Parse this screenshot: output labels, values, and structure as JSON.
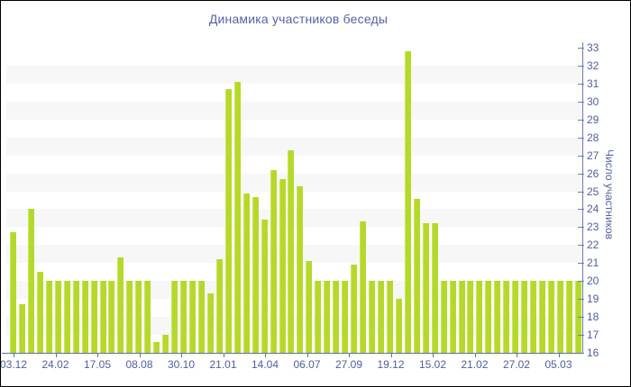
{
  "title": "Динамика участников беседы",
  "chart_data": {
    "type": "bar",
    "title": "Динамика участников беседы",
    "xlabel": "",
    "ylabel": "Число участников",
    "ylim": [
      16,
      33
    ],
    "y_ticks": [
      16,
      17,
      18,
      19,
      20,
      21,
      22,
      23,
      24,
      25,
      26,
      27,
      28,
      29,
      30,
      31,
      32,
      33
    ],
    "y_axis_side": "right",
    "grid": "alternating horizontal bands on odd-even value pairs",
    "legend": "none",
    "x_tick_labels": [
      "03.12",
      "24.02",
      "17.05",
      "08.08",
      "30.10",
      "21.01",
      "14.04",
      "06.07",
      "27.09",
      "19.12",
      "15.02",
      "21.02",
      "27.02",
      "05.03"
    ],
    "values": [
      22.7,
      18.7,
      24,
      20.5,
      20,
      20,
      20,
      20,
      20,
      20,
      20,
      20,
      21.3,
      20,
      20,
      20,
      16.6,
      17,
      20,
      20,
      20,
      20,
      19.3,
      21.2,
      30.7,
      31.1,
      24.9,
      24.7,
      23.4,
      26.2,
      25.7,
      27.3,
      25.3,
      21.1,
      20,
      20,
      20,
      20,
      20.9,
      23.3,
      20,
      20,
      20,
      19,
      32.8,
      24.6,
      23.2,
      23.2,
      20,
      20,
      20,
      20,
      20,
      20,
      20,
      20,
      20,
      20,
      20,
      20,
      20,
      20,
      20,
      20
    ]
  },
  "colors": {
    "bar": "#b5d92b",
    "bar_highlight": "#cbe55e",
    "band": "#f7f7f7",
    "axis_line": "#5e6fa5",
    "text": "#4d5f99",
    "title_text": "#5663a2",
    "background": "#ffffff",
    "border": "#000000"
  }
}
